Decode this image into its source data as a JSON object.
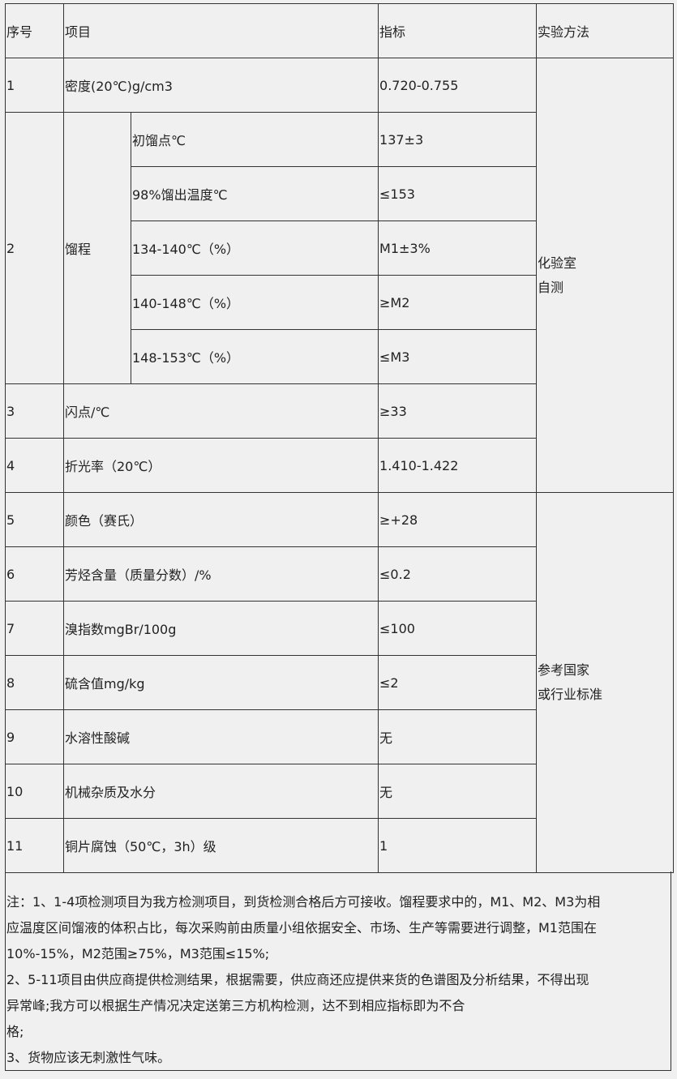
{
  "header": {
    "no": "序号",
    "item": "项目",
    "spec": "指标",
    "method": "实验方法"
  },
  "rows": [
    {
      "no": "1",
      "item": "密度(20℃)g/cm3",
      "spec": "0.720-0.755"
    },
    {
      "no": "2",
      "item": "馏程",
      "sub": [
        {
          "item": "初馏点℃",
          "spec": "137±3"
        },
        {
          "item": "98%馏出温度℃",
          "spec": "≤153"
        },
        {
          "item": "134-140℃（%）",
          "spec": "M1±3%"
        },
        {
          "item": "140-148℃（%）",
          "spec": "≥M2"
        },
        {
          "item": "148-153℃（%）",
          "spec": "≤M3"
        }
      ]
    },
    {
      "no": "3",
      "item": "闪点/℃",
      "spec": "≥33"
    },
    {
      "no": "4",
      "item": "折光率（20℃）",
      "spec": "1.410-1.422"
    },
    {
      "no": "5",
      "item": "颜色（赛氏）",
      "spec": "≥+28"
    },
    {
      "no": "6",
      "item": "芳烃含量（质量分数）/%",
      "spec": "≤0.2"
    },
    {
      "no": "7",
      "item": "溴指数mgBr/100g",
      "spec": "≤100"
    },
    {
      "no": "8",
      "item": "硫含值mg/kg",
      "spec": "≤2"
    },
    {
      "no": "9",
      "item": "水溶性酸碱",
      "spec": "无"
    },
    {
      "no": "10",
      "item": "机械杂质及水分",
      "spec": "无"
    },
    {
      "no": "11",
      "item": "铜片腐蚀（50℃，3h）级",
      "spec": "1"
    }
  ],
  "methods": {
    "lab_line1": "化验室",
    "lab_line2": "自测",
    "std_line1": "参考国家",
    "std_line2": "或行业标准"
  },
  "notes": [
    "注：1、1-4项检测项目为我方检测项目，到货检测合格后方可接收。馏程要求中的，M1、M2、M3为相",
    "应温度区间馏液的体积占比，每次采购前由质量小组依据安全、市场、生产等需要进行调整，M1范围在",
    "10%-15%，M2范围≥75%，M3范围≤15%;",
    "2、5-11项目由供应商提供检测结果，根据需要，供应商还应提供来货的色谱图及分析结果，不得出现",
    "异常峰;我方可以根据生产情况决定送第三方机构检测，达不到相应指标即为不合",
    "格;",
    "3、货物应该无刺激性气味。"
  ]
}
